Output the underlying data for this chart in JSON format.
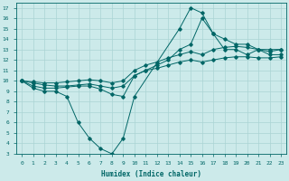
{
  "xlabel": "Humidex (Indice chaleur)",
  "xlim": [
    -0.5,
    23.5
  ],
  "ylim": [
    3,
    17.5
  ],
  "yticks": [
    3,
    4,
    5,
    6,
    7,
    8,
    9,
    10,
    11,
    12,
    13,
    14,
    15,
    16,
    17
  ],
  "xticks": [
    0,
    1,
    2,
    3,
    4,
    5,
    6,
    7,
    8,
    9,
    10,
    11,
    12,
    13,
    14,
    15,
    16,
    17,
    18,
    19,
    20,
    21,
    22,
    23
  ],
  "bg_color": "#cceaea",
  "grid_color": "#aad4d4",
  "line_color": "#006666",
  "lines": [
    {
      "x": [
        0,
        1,
        2,
        3,
        4,
        5,
        6,
        7,
        8,
        9,
        10,
        14,
        15,
        16,
        17,
        18,
        19,
        20,
        21,
        22,
        23
      ],
      "y": [
        10,
        9.3,
        9,
        9,
        8.5,
        6,
        4.5,
        3.5,
        3,
        4.5,
        8.5,
        15,
        17,
        16.5,
        14.5,
        13,
        13,
        12.5,
        13,
        12.5,
        12.5
      ]
    },
    {
      "x": [
        0,
        1,
        2,
        3,
        4,
        5,
        6,
        7,
        8,
        9,
        10,
        11,
        12,
        13,
        14,
        15,
        16,
        17,
        18,
        19,
        20,
        21,
        22,
        23
      ],
      "y": [
        10,
        9.8,
        9.6,
        9.5,
        9.5,
        9.6,
        9.7,
        9.5,
        9.3,
        9.5,
        10.5,
        11,
        11.2,
        11.5,
        11.8,
        12,
        11.8,
        12,
        12.2,
        12.3,
        12.3,
        12.2,
        12.2,
        12.3
      ]
    },
    {
      "x": [
        0,
        1,
        2,
        3,
        4,
        5,
        6,
        7,
        8,
        9,
        10,
        11,
        12,
        13,
        14,
        15,
        16,
        17,
        18,
        19,
        20,
        21,
        22,
        23
      ],
      "y": [
        10,
        9.9,
        9.8,
        9.8,
        9.9,
        10.0,
        10.1,
        10.0,
        9.8,
        10.0,
        11.0,
        11.5,
        11.8,
        12.2,
        12.5,
        12.8,
        12.5,
        13.0,
        13.2,
        13.3,
        13.2,
        13.0,
        13.0,
        13.0
      ]
    },
    {
      "x": [
        0,
        1,
        2,
        3,
        4,
        5,
        6,
        7,
        8,
        9,
        10,
        11,
        12,
        13,
        14,
        15,
        16,
        17,
        18,
        19,
        20,
        21,
        22,
        23
      ],
      "y": [
        10,
        9.5,
        9.3,
        9.3,
        9.4,
        9.5,
        9.5,
        9.2,
        8.7,
        8.5,
        10.5,
        11,
        11.5,
        12,
        13,
        13.5,
        16,
        14.5,
        14.0,
        13.5,
        13.5,
        13,
        12.8,
        13.0
      ]
    }
  ],
  "dpi": 100,
  "figsize": [
    3.2,
    2.0
  ]
}
